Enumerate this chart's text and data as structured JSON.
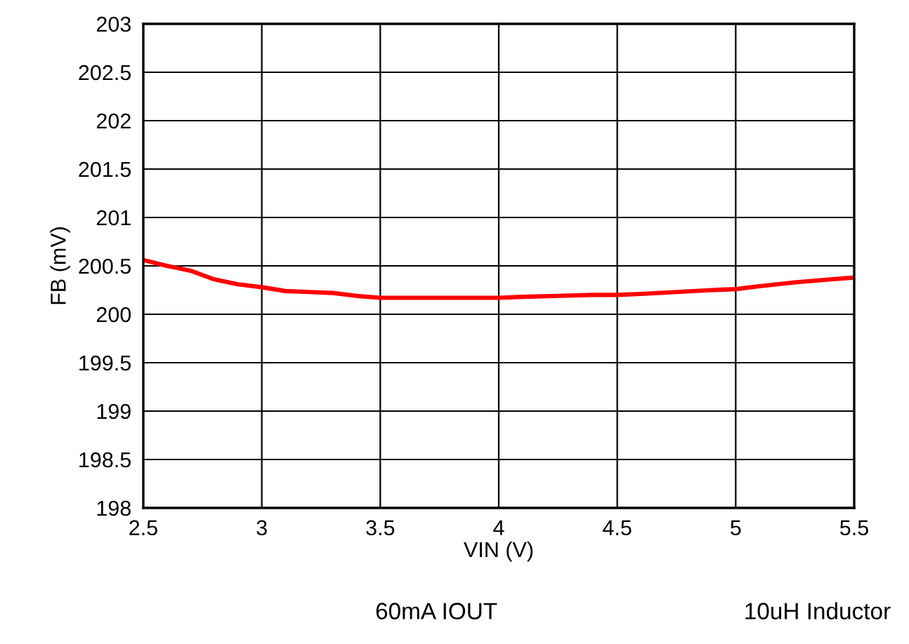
{
  "chart_data": {
    "type": "line",
    "xlabel": "VIN (V)",
    "ylabel": "FB (mV)",
    "x": [
      2.5,
      2.6,
      2.7,
      2.8,
      2.9,
      3.0,
      3.1,
      3.2,
      3.3,
      3.4,
      3.5,
      3.6,
      3.75,
      3.9,
      4.0,
      4.1,
      4.25,
      4.4,
      4.5,
      4.6,
      4.75,
      4.9,
      5.0,
      5.1,
      5.25,
      5.4,
      5.5
    ],
    "series": [
      {
        "color": "#ff0000",
        "values": [
          200.56,
          200.5,
          200.45,
          200.36,
          200.31,
          200.28,
          200.24,
          200.23,
          200.22,
          200.19,
          200.17,
          200.17,
          200.17,
          200.17,
          200.17,
          200.18,
          200.19,
          200.2,
          200.2,
          200.21,
          200.23,
          200.25,
          200.26,
          200.29,
          200.33,
          200.36,
          200.38
        ]
      }
    ],
    "xlim": [
      2.5,
      5.5
    ],
    "xticks": [
      2.5,
      3,
      3.5,
      4,
      4.5,
      5,
      5.5
    ],
    "ylim": [
      198,
      203
    ],
    "yticks": [
      198,
      198.5,
      199,
      199.5,
      200,
      200.5,
      201,
      201.5,
      202,
      202.5,
      203
    ],
    "grid": true,
    "marker": "none",
    "line_style": "solid",
    "annotations": [
      "60mA IOUT",
      "10uH Inductor"
    ]
  }
}
